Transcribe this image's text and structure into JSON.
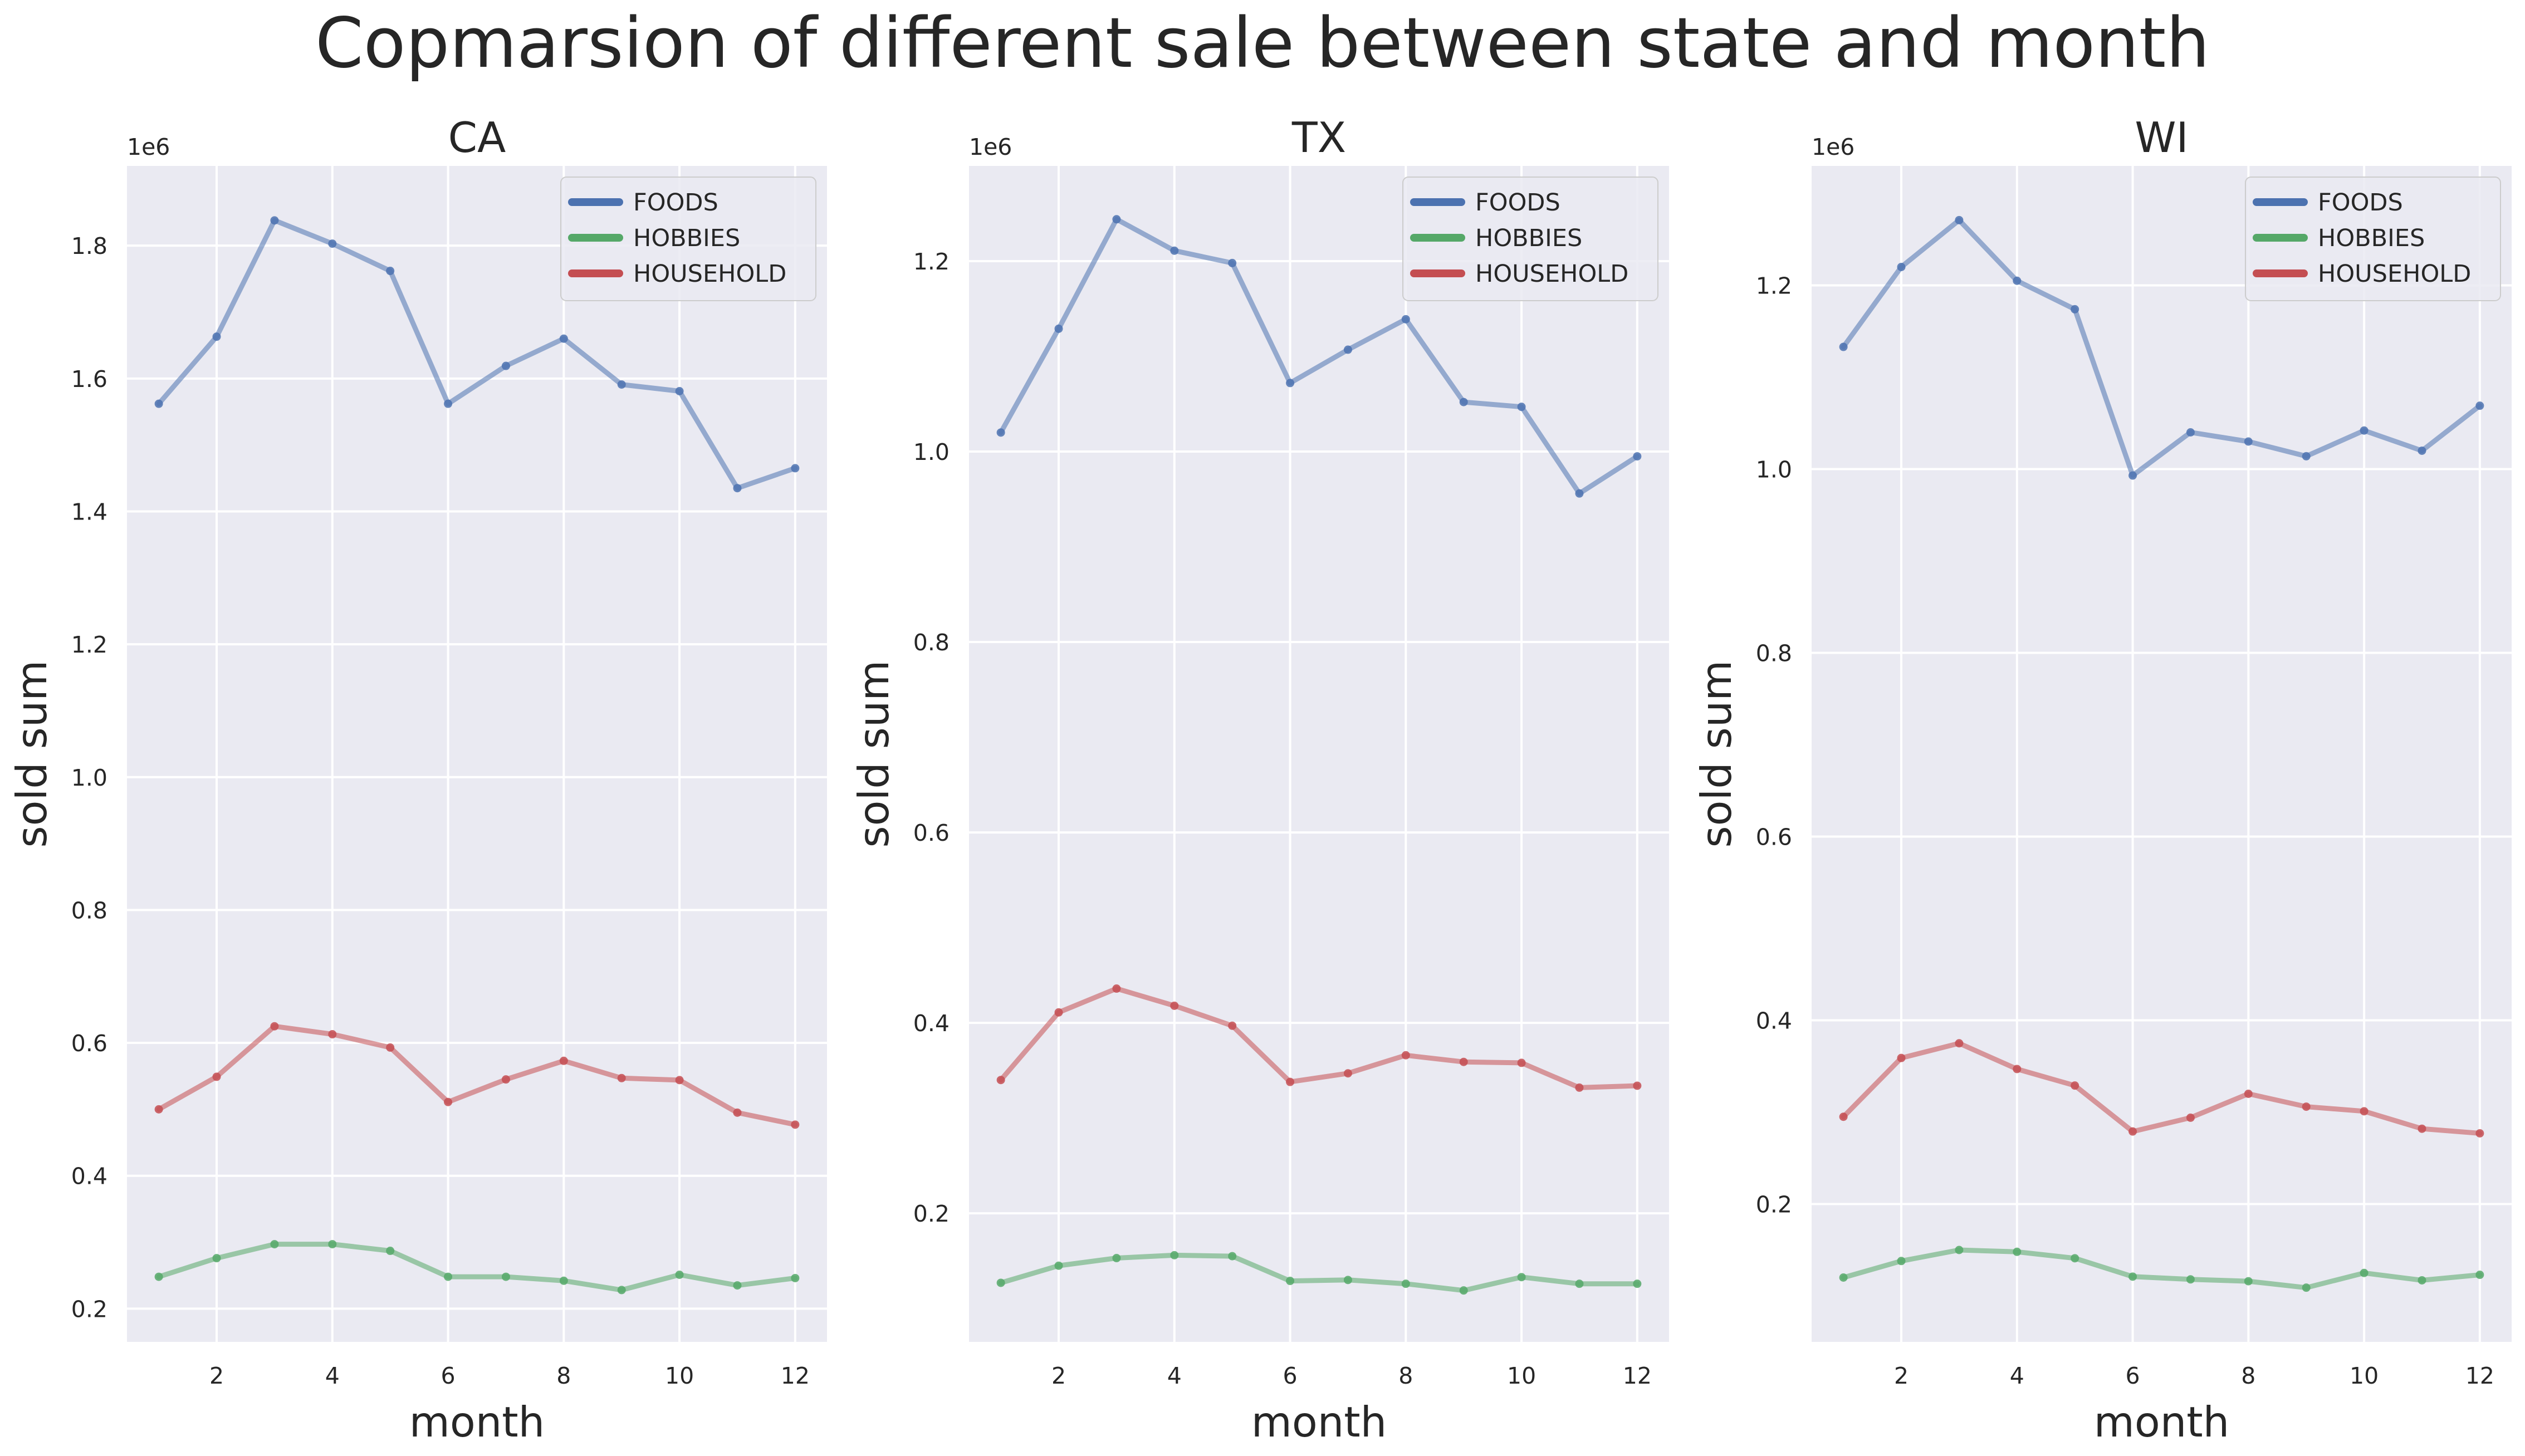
{
  "figure": {
    "title": "Copmarsion of different sale between state and month"
  },
  "legend": {
    "placement": "upper right"
  },
  "colors": {
    "panel_background": "#EAEAF2",
    "grid": "#FFFFFF",
    "text": "#262626"
  },
  "chart_data": [
    {
      "type": "line",
      "title": "CA",
      "xlabel": "month",
      "ylabel": "sold sum",
      "y_offset_label": "1e6",
      "xlim": [
        0.45,
        12.55
      ],
      "ylim": [
        0.15,
        1.92
      ],
      "xticks": [
        2,
        4,
        6,
        8,
        10,
        12
      ],
      "yticks": [
        0.2,
        0.4,
        0.6,
        0.8,
        1.0,
        1.2,
        1.4,
        1.6,
        1.8
      ],
      "grid": true,
      "x": [
        1,
        2,
        3,
        4,
        5,
        6,
        7,
        8,
        9,
        10,
        11,
        12
      ],
      "series": [
        {
          "name": "FOODS",
          "color": "#4C72B0",
          "values": [
            1.562,
            1.663,
            1.838,
            1.803,
            1.762,
            1.562,
            1.619,
            1.66,
            1.591,
            1.581,
            1.435,
            1.465
          ]
        },
        {
          "name": "HOBBIES",
          "color": "#55A868",
          "values": [
            0.248,
            0.276,
            0.297,
            0.297,
            0.287,
            0.248,
            0.248,
            0.242,
            0.228,
            0.251,
            0.235,
            0.246
          ]
        },
        {
          "name": "HOUSEHOLD",
          "color": "#C44E52",
          "values": [
            0.5,
            0.549,
            0.625,
            0.613,
            0.593,
            0.511,
            0.545,
            0.573,
            0.547,
            0.544,
            0.495,
            0.477
          ]
        }
      ]
    },
    {
      "type": "line",
      "title": "TX",
      "xlabel": "month",
      "ylabel": "sold sum",
      "y_offset_label": "1e6",
      "xlim": [
        0.45,
        12.55
      ],
      "ylim": [
        0.065,
        1.3
      ],
      "xticks": [
        2,
        4,
        6,
        8,
        10,
        12
      ],
      "yticks": [
        0.2,
        0.4,
        0.6,
        0.8,
        1.0,
        1.2
      ],
      "grid": true,
      "x": [
        1,
        2,
        3,
        4,
        5,
        6,
        7,
        8,
        9,
        10,
        11,
        12
      ],
      "series": [
        {
          "name": "FOODS",
          "color": "#4C72B0",
          "values": [
            1.02,
            1.129,
            1.244,
            1.211,
            1.198,
            1.072,
            1.107,
            1.139,
            1.052,
            1.047,
            0.956,
            0.995
          ]
        },
        {
          "name": "HOBBIES",
          "color": "#55A868",
          "values": [
            0.127,
            0.145,
            0.153,
            0.156,
            0.155,
            0.129,
            0.13,
            0.126,
            0.119,
            0.133,
            0.126,
            0.126
          ]
        },
        {
          "name": "HOUSEHOLD",
          "color": "#C44E52",
          "values": [
            0.34,
            0.411,
            0.436,
            0.418,
            0.397,
            0.338,
            0.347,
            0.366,
            0.359,
            0.358,
            0.332,
            0.334
          ]
        }
      ]
    },
    {
      "type": "line",
      "title": "WI",
      "xlabel": "month",
      "ylabel": "sold sum",
      "y_offset_label": "1e6",
      "xlim": [
        0.45,
        12.55
      ],
      "ylim": [
        0.05,
        1.33
      ],
      "xticks": [
        2,
        4,
        6,
        8,
        10,
        12
      ],
      "yticks": [
        0.2,
        0.4,
        0.6,
        0.8,
        1.0,
        1.2
      ],
      "grid": true,
      "x": [
        1,
        2,
        3,
        4,
        5,
        6,
        7,
        8,
        9,
        10,
        11,
        12
      ],
      "series": [
        {
          "name": "FOODS",
          "color": "#4C72B0",
          "values": [
            1.133,
            1.22,
            1.271,
            1.205,
            1.174,
            0.993,
            1.04,
            1.03,
            1.014,
            1.042,
            1.02,
            1.069
          ]
        },
        {
          "name": "HOBBIES",
          "color": "#55A868",
          "values": [
            0.12,
            0.138,
            0.15,
            0.148,
            0.141,
            0.121,
            0.118,
            0.116,
            0.109,
            0.125,
            0.117,
            0.123
          ]
        },
        {
          "name": "HOUSEHOLD",
          "color": "#C44E52",
          "values": [
            0.295,
            0.359,
            0.375,
            0.347,
            0.329,
            0.279,
            0.294,
            0.32,
            0.306,
            0.301,
            0.282,
            0.277
          ]
        }
      ]
    }
  ]
}
